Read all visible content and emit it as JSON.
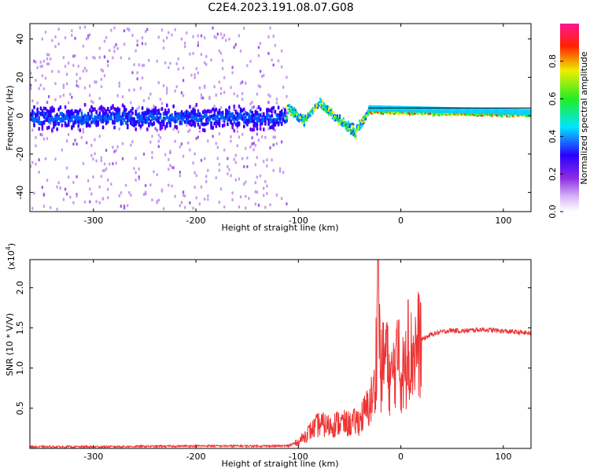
{
  "title": "C2E4.2023.191.08.07.G08",
  "chart_data": [
    {
      "type": "heatmap",
      "xlabel": "Height of straight line (km)",
      "ylabel": "Frequency (Hz)",
      "xlim": [
        -362,
        127
      ],
      "ylim": [
        -50,
        48
      ],
      "x_ticks": [
        "-300",
        "-200",
        "-100",
        "0",
        "100"
      ],
      "y_ticks": [
        "40",
        "20",
        "0",
        "-20",
        "-40"
      ],
      "colorbar": {
        "label": "Normalized spectral amplitude",
        "range": [
          0,
          1
        ],
        "ticks": [
          "0.0",
          "0.2",
          "0.4",
          "0.6",
          "0.8"
        ]
      },
      "description_points": [
        {
          "x": -362,
          "center_hz": 0,
          "spread_hz": 48
        },
        {
          "x": -115,
          "center_hz": 0,
          "spread_hz": 48
        },
        {
          "x": -110,
          "center_hz": 4,
          "spread_hz": 6
        },
        {
          "x": -95,
          "center_hz": -2,
          "spread_hz": 6
        },
        {
          "x": -80,
          "center_hz": 8,
          "spread_hz": 5
        },
        {
          "x": -65,
          "center_hz": 0,
          "spread_hz": 6
        },
        {
          "x": -45,
          "center_hz": -8,
          "spread_hz": 8
        },
        {
          "x": -32,
          "center_hz": 3,
          "spread_hz": 3
        },
        {
          "x": 127,
          "center_hz": 1,
          "spread_hz": 2
        }
      ]
    },
    {
      "type": "line",
      "xlabel": "Height of straight line (km)",
      "ylabel": "SNR (10 * V/V)",
      "y_multiplier": "(x10",
      "y_multiplier_exp": "4",
      "y_multiplier_close": ")",
      "xlim": [
        -362,
        127
      ],
      "ylim": [
        0,
        2.35
      ],
      "x_ticks": [
        "-300",
        "-200",
        "-100",
        "0",
        "100"
      ],
      "y_ticks": [
        "0.5",
        "1.0",
        "1.5",
        "2.0"
      ],
      "series": [
        {
          "color": "#ee3333",
          "x": [
            -362,
            -300,
            -200,
            -110,
            -100,
            -90,
            -80,
            -70,
            -60,
            -50,
            -40,
            -30,
            -25,
            -22,
            -20,
            -15,
            -10,
            -5,
            0,
            5,
            10,
            15,
            20,
            30,
            40,
            50,
            60,
            70,
            80,
            90,
            100,
            110,
            120,
            127
          ],
          "y": [
            0.02,
            0.02,
            0.03,
            0.03,
            0.08,
            0.2,
            0.3,
            0.28,
            0.32,
            0.3,
            0.35,
            0.55,
            0.75,
            2.3,
            0.9,
            1.2,
            0.8,
            1.1,
            0.9,
            1.0,
            1.15,
            1.25,
            1.35,
            1.42,
            1.45,
            1.47,
            1.46,
            1.47,
            1.48,
            1.47,
            1.46,
            1.45,
            1.44,
            1.43
          ]
        }
      ],
      "spikes": [
        {
          "x": -22,
          "y": 2.35
        },
        {
          "x": -14,
          "y": 1.55
        },
        {
          "x": 7,
          "y": 1.85
        },
        {
          "x": -2,
          "y": 1.6
        }
      ]
    }
  ]
}
